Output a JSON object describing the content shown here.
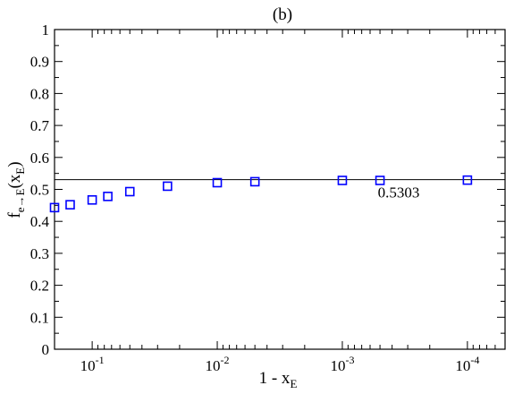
{
  "chart_data": {
    "type": "scatter",
    "title": "(b)",
    "xlabel": {
      "main": "1 - x",
      "sub": "E"
    },
    "ylabel": {
      "main": "f",
      "sub": "e→E",
      "tail_open": "(x",
      "tail_sub": "E",
      "tail_close": ")"
    },
    "x_scale": "log-reversed",
    "x_lim": [
      0.2,
      5e-05
    ],
    "y_lim": [
      0,
      1
    ],
    "x_ticks": [
      {
        "value": 0.1,
        "base": "10",
        "exp": "-1"
      },
      {
        "value": 0.01,
        "base": "10",
        "exp": "-2"
      },
      {
        "value": 0.001,
        "base": "10",
        "exp": "-3"
      },
      {
        "value": 0.0001,
        "base": "10",
        "exp": "-4"
      }
    ],
    "y_ticks": [
      {
        "value": 0,
        "label": "0"
      },
      {
        "value": 0.1,
        "label": "0.1"
      },
      {
        "value": 0.2,
        "label": "0.2"
      },
      {
        "value": 0.3,
        "label": "0.3"
      },
      {
        "value": 0.4,
        "label": "0.4"
      },
      {
        "value": 0.5,
        "label": "0.5"
      },
      {
        "value": 0.6,
        "label": "0.6"
      },
      {
        "value": 0.7,
        "label": "0.7"
      },
      {
        "value": 0.8,
        "label": "0.8"
      },
      {
        "value": 0.9,
        "label": "0.9"
      },
      {
        "value": 1,
        "label": "1"
      }
    ],
    "series": [
      {
        "marker": "open-square",
        "color": "#0000ff",
        "points": [
          {
            "x": 0.2,
            "y": 0.443
          },
          {
            "x": 0.15,
            "y": 0.452
          },
          {
            "x": 0.1,
            "y": 0.467
          },
          {
            "x": 0.075,
            "y": 0.478
          },
          {
            "x": 0.05,
            "y": 0.493
          },
          {
            "x": 0.025,
            "y": 0.51
          },
          {
            "x": 0.01,
            "y": 0.521
          },
          {
            "x": 0.005,
            "y": 0.524
          },
          {
            "x": 0.001,
            "y": 0.528
          },
          {
            "x": 0.0005,
            "y": 0.528
          },
          {
            "x": 0.0001,
            "y": 0.529
          }
        ]
      }
    ],
    "reference_line": {
      "y": 0.5303,
      "label": "0.5303",
      "color": "#000000"
    }
  }
}
